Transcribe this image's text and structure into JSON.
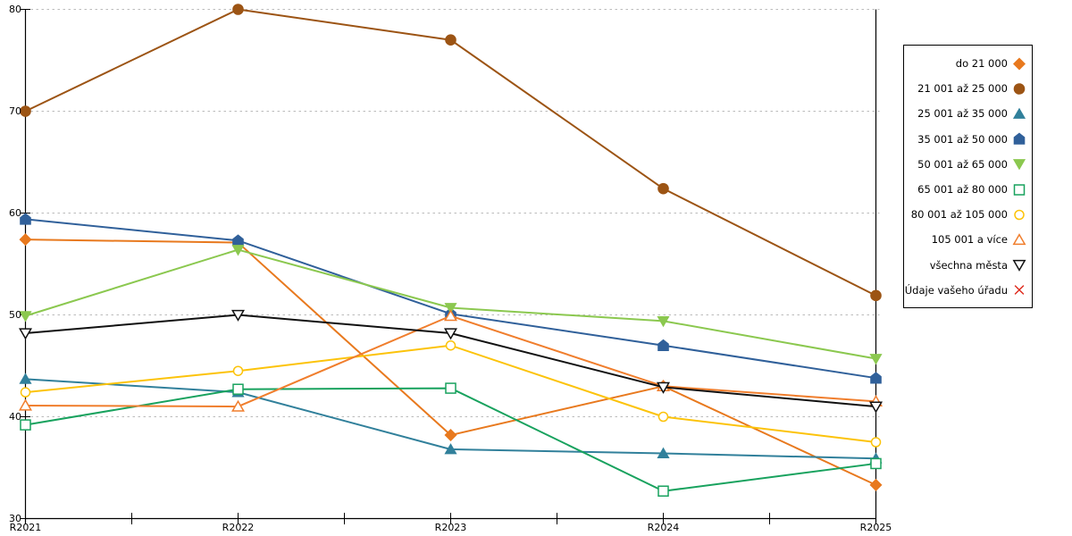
{
  "chart_data": {
    "type": "line",
    "title": "",
    "xlabel": "",
    "ylabel": "",
    "x": [
      "R2021",
      "R2022",
      "R2023",
      "R2024",
      "R2025"
    ],
    "ylim": [
      30,
      80
    ],
    "yticks": [
      30,
      40,
      50,
      60,
      70,
      80
    ],
    "grid": "horizontal-dashed",
    "gridline_color": "#bbbbbb",
    "axis_color": "#000000",
    "legend_position": "right-box",
    "series": [
      {
        "name": "do 21 000",
        "color": "#E8791E",
        "marker": "diamond",
        "filled": true,
        "values": [
          57.4,
          57.1,
          38.2,
          43.0,
          33.3
        ]
      },
      {
        "name": "21 001 až 25 000",
        "color": "#9C5414",
        "marker": "circle",
        "filled": true,
        "values": [
          70.0,
          80.0,
          77.0,
          62.4,
          51.9
        ]
      },
      {
        "name": "25 001 až 35 000",
        "color": "#31809B",
        "marker": "triangle-up",
        "filled": true,
        "values": [
          43.7,
          42.4,
          36.8,
          36.4,
          35.9
        ]
      },
      {
        "name": "35 001 až 50 000",
        "color": "#30609A",
        "marker": "pentagon",
        "filled": true,
        "values": [
          59.4,
          57.3,
          50.1,
          47.0,
          43.8
        ]
      },
      {
        "name": "50 001 až 65 000",
        "color": "#8BC84F",
        "marker": "triangle-down",
        "filled": true,
        "values": [
          49.9,
          56.4,
          50.7,
          49.4,
          45.7
        ]
      },
      {
        "name": "65 001 až 80 000",
        "color": "#18A25E",
        "marker": "square",
        "filled": false,
        "values": [
          39.2,
          42.7,
          42.8,
          32.7,
          35.4
        ]
      },
      {
        "name": "80 001 až 105 000",
        "color": "#FCC30A",
        "marker": "circle",
        "filled": false,
        "values": [
          42.4,
          44.5,
          47.0,
          40.0,
          37.5
        ]
      },
      {
        "name": "105 001 a více",
        "color": "#F07E2D",
        "marker": "triangle-up",
        "filled": false,
        "values": [
          41.1,
          41.0,
          49.9,
          43.0,
          41.5
        ]
      },
      {
        "name": "všechna města",
        "color": "#111111",
        "marker": "triangle-down",
        "filled": false,
        "values": [
          48.2,
          50.0,
          48.2,
          42.9,
          41.0
        ]
      },
      {
        "name": "Údaje vašeho úřadu",
        "color": "#DE2A1C",
        "marker": "x",
        "filled": false,
        "values": []
      }
    ]
  }
}
